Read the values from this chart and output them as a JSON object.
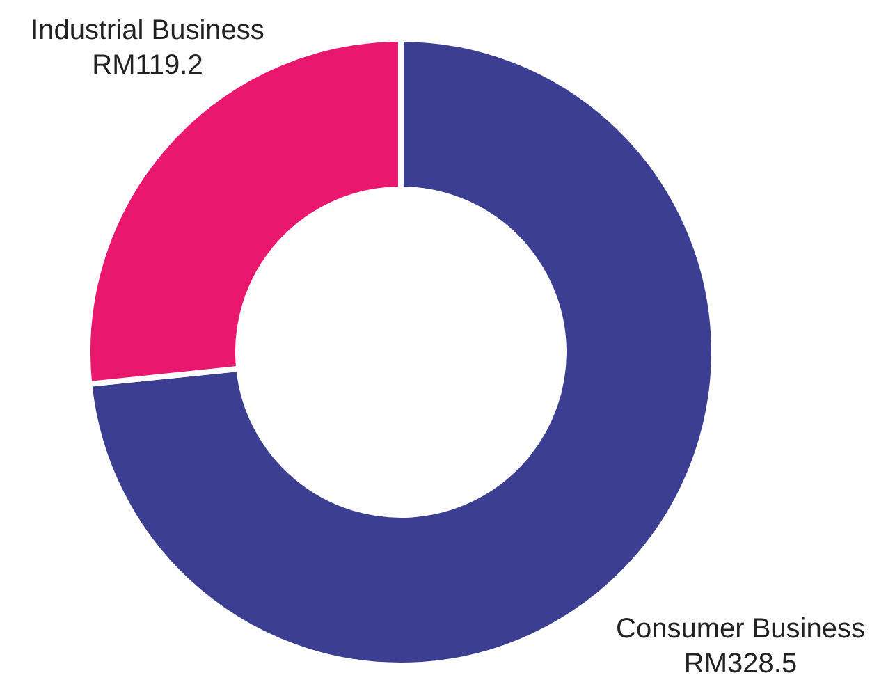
{
  "chart_data": {
    "type": "donut",
    "categories": [
      "Consumer Business",
      "Industrial Business"
    ],
    "values": [
      328.5,
      119.2
    ],
    "colors": [
      "#3c3f91",
      "#e9176e"
    ],
    "value_labels": [
      "RM328.5",
      "RM119.2"
    ]
  }
}
